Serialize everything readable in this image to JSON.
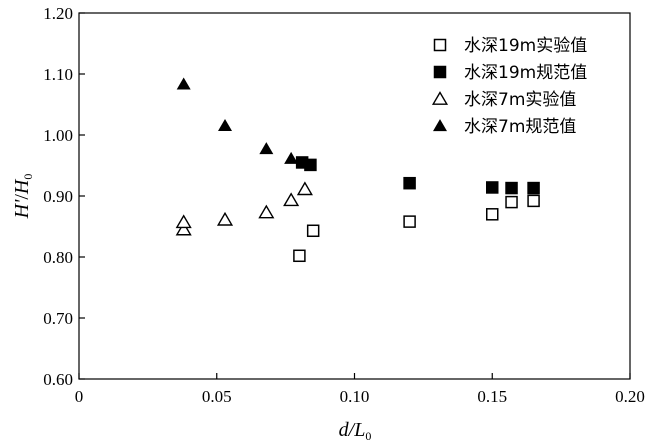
{
  "chart_data": {
    "type": "scatter",
    "xlabel": {
      "main": "d/L",
      "sub": "0"
    },
    "ylabel": {
      "num": "H'",
      "slash": "/",
      "den": "H",
      "sub": "0"
    },
    "xlim": [
      0,
      0.2
    ],
    "ylim": [
      0.6,
      1.2
    ],
    "x_ticks": [
      0,
      0.05,
      0.1,
      0.15,
      0.2
    ],
    "x_tick_labels": [
      "0",
      "0.05",
      "0.10",
      "0.15",
      "0.20"
    ],
    "y_ticks": [
      0.6,
      0.7,
      0.8,
      0.9,
      1.0,
      1.1,
      1.2
    ],
    "y_tick_labels": [
      "0.60",
      "0.70",
      "0.80",
      "0.90",
      "1.00",
      "1.10",
      "1.20"
    ],
    "grid": false,
    "legend_position": "top-right",
    "series": [
      {
        "name": "水深19m实验值",
        "marker": "square-open",
        "color": "#000000",
        "points": [
          [
            0.08,
            0.802
          ],
          [
            0.085,
            0.843
          ],
          [
            0.12,
            0.858
          ],
          [
            0.15,
            0.87
          ],
          [
            0.157,
            0.89
          ],
          [
            0.165,
            0.892
          ]
        ]
      },
      {
        "name": "水深19m规范值",
        "marker": "square-filled",
        "color": "#000000",
        "points": [
          [
            0.081,
            0.955
          ],
          [
            0.084,
            0.951
          ],
          [
            0.12,
            0.921
          ],
          [
            0.15,
            0.914
          ],
          [
            0.157,
            0.913
          ],
          [
            0.165,
            0.913
          ]
        ]
      },
      {
        "name": "水深7m实验值",
        "marker": "triangle-open",
        "color": "#000000",
        "points": [
          [
            0.038,
            0.845
          ],
          [
            0.038,
            0.857
          ],
          [
            0.053,
            0.861
          ],
          [
            0.068,
            0.873
          ],
          [
            0.077,
            0.893
          ],
          [
            0.082,
            0.911
          ]
        ]
      },
      {
        "name": "水深7m规范值",
        "marker": "triangle-filled",
        "color": "#000000",
        "points": [
          [
            0.038,
            1.083
          ],
          [
            0.053,
            1.015
          ],
          [
            0.068,
            0.977
          ],
          [
            0.077,
            0.961
          ]
        ]
      }
    ]
  }
}
